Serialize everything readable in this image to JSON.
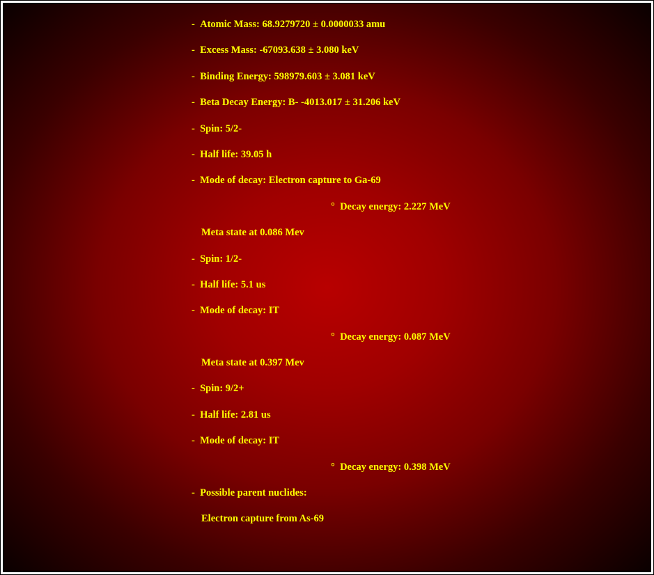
{
  "colors": {
    "text": "#ffff00",
    "bg_center": "#b80000",
    "bg_edge": "#0a0000",
    "frame_border": "#000000",
    "page_bg": "#ffffff"
  },
  "typography": {
    "font_family": "Times New Roman",
    "font_size_pt": 11,
    "font_weight": "bold"
  },
  "items": {
    "atomic_mass": "Atomic Mass: 68.9279720 ± 0.0000033 amu",
    "excess_mass": "Excess Mass: -67093.638 ± 3.080 keV",
    "binding_energy": "Binding Energy: 598979.603 ± 3.081 keV",
    "beta_decay": "Beta Decay Energy: B- -4013.017 ± 31.206 keV",
    "spin1": "Spin: 5/2-",
    "half_life1": "Half life: 39.05 h",
    "mode1": "Mode of decay: Electron capture to Ga-69",
    "decay_energy1": "Decay energy: 2.227 MeV",
    "meta1": "Meta state at 0.086 Mev",
    "spin2": "Spin: 1/2-",
    "half_life2": "Half life: 5.1 us",
    "mode2": "Mode of decay: IT",
    "decay_energy2": "Decay energy: 0.087 MeV",
    "meta2": "Meta state at 0.397 Mev",
    "spin3": "Spin: 9/2+",
    "half_life3": "Half life: 2.81 us",
    "mode3": "Mode of decay: IT",
    "decay_energy3": "Decay energy: 0.398 MeV",
    "parent": "Possible parent nuclides:",
    "parent_detail": "Electron capture from As-69"
  }
}
